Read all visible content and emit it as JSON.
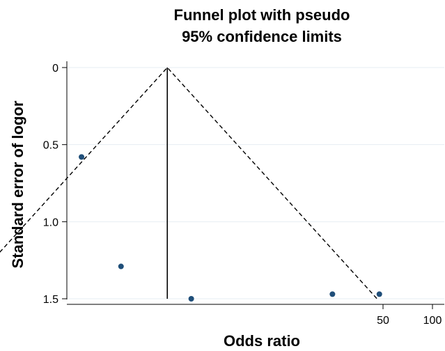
{
  "chart_data": {
    "type": "scatter",
    "title": "Funnel plot with pseudo 95% confidence limits",
    "title_lines": [
      "Funnel plot with pseudo",
      "95% confidence limits"
    ],
    "xlabel": "Odds ratio",
    "ylabel": "Standard error of logor",
    "x_scale": "log",
    "x_ticks": [
      50,
      100
    ],
    "x_tick_labels": [
      "50",
      "100"
    ],
    "y_reversed": true,
    "ylim": [
      0,
      1.5
    ],
    "y_ticks": [
      0,
      0.5,
      1.0,
      1.5
    ],
    "y_tick_labels": [
      "0",
      "0.5",
      "1.0",
      "1.5"
    ],
    "grid": true,
    "pooled_odds_ratio": 2.43,
    "funnel_limits": {
      "type": "pseudo 95% confidence limits",
      "z": 1.96
    },
    "points": [
      {
        "x": 0.73,
        "y": 0.58
      },
      {
        "x": 1.27,
        "y": 1.29
      },
      {
        "x": 3.4,
        "y": 1.5
      },
      {
        "x": 24.6,
        "y": 1.47
      },
      {
        "x": 47.5,
        "y": 1.47
      }
    ],
    "colors": {
      "points": "#1f4e79",
      "grid": "#e6edf3",
      "lines": "#000000"
    }
  }
}
